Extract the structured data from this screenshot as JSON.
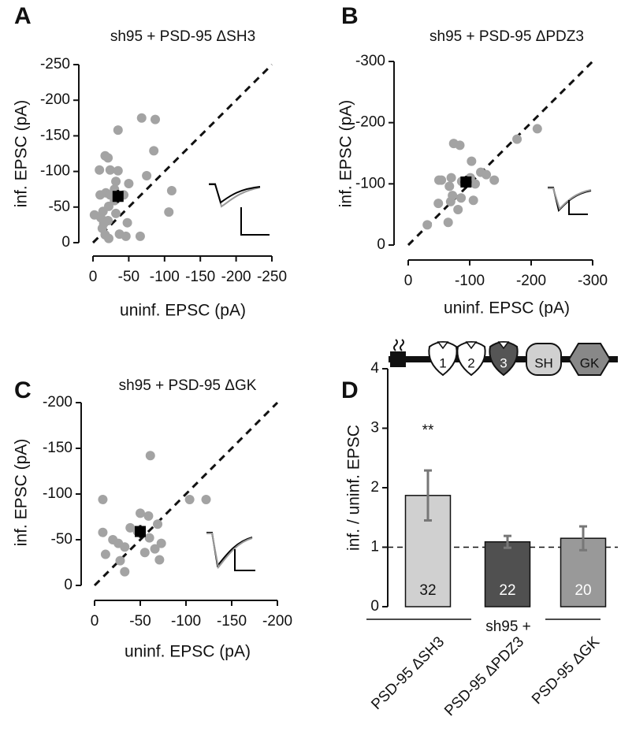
{
  "chart_data": [
    {
      "type": "scatter",
      "panel_label": "A",
      "title": "sh95 + PSD-95 ΔSH3",
      "xlabel": "uninf. EPSC (pA)",
      "ylabel": "inf. EPSC (pA)",
      "xlim": [
        0,
        -250
      ],
      "ylim": [
        0,
        -250
      ],
      "xticks": [
        0,
        -50,
        -100,
        -150,
        -200,
        -250
      ],
      "yticks": [
        0,
        -50,
        -100,
        -150,
        -200,
        -250
      ],
      "color": "#a3a3a3",
      "unity_line": true,
      "x": [
        -35,
        -68,
        -87,
        -85,
        -17,
        -21,
        -9,
        -24,
        -32,
        -35,
        -50,
        -75,
        -110,
        -106,
        -18,
        -10,
        -24,
        -43,
        -30,
        -22,
        -14,
        -2,
        -11,
        -21,
        -32,
        -15,
        -13,
        -17,
        -22,
        -37,
        -48,
        -66,
        -46,
        -30
      ],
      "values": [
        -158,
        -175,
        -173,
        -129,
        -122,
        -119,
        -102,
        -102,
        -86,
        -101,
        -83,
        -94,
        -73,
        -43,
        -70,
        -67,
        -67,
        -67,
        -59,
        -51,
        -44,
        -39,
        -35,
        -31,
        -41,
        -27,
        -20,
        -11,
        -6,
        -12,
        -28,
        -9,
        -9,
        -75
      ],
      "mean": {
        "x": -35,
        "y": -65,
        "x_error": 7,
        "y_error": 9,
        "color": "#000000"
      }
    },
    {
      "type": "scatter",
      "panel_label": "B",
      "title": "sh95 + PSD-95 ΔPDZ3",
      "xlabel": "uninf. EPSC (pA)",
      "ylabel": "inf. EPSC (pA)",
      "xlim": [
        0,
        -300
      ],
      "ylim": [
        0,
        -300
      ],
      "xticks": [
        0,
        -100,
        -200,
        -300
      ],
      "yticks": [
        0,
        -100,
        -200,
        -300
      ],
      "color": "#a3a3a3",
      "unity_line": true,
      "x": [
        -31,
        -69,
        -81,
        -65,
        -49,
        -54,
        -70,
        -87,
        -101,
        -109,
        -118,
        -127,
        -140,
        -103,
        -74,
        -84,
        -72,
        -67,
        -86,
        -106,
        -177,
        -210,
        -50
      ],
      "values": [
        -33,
        -71,
        -58,
        -37,
        -68,
        -106,
        -110,
        -104,
        -110,
        -100,
        -119,
        -115,
        -106,
        -137,
        -166,
        -163,
        -81,
        -96,
        -77,
        -73,
        -173,
        -190,
        -106
      ],
      "mean": {
        "x": -94,
        "y": -103,
        "x_error": 9,
        "y_error": 10,
        "color": "#000000"
      }
    },
    {
      "type": "scatter",
      "panel_label": "C",
      "title": "sh95 + PSD-95 ΔGK",
      "xlabel": "uninf. EPSC (pA)",
      "ylabel": "inf. EPSC (pA)",
      "xlim": [
        0,
        -200
      ],
      "ylim": [
        0,
        -200
      ],
      "xticks": [
        0,
        -50,
        -100,
        -150,
        -200
      ],
      "yticks": [
        0,
        -50,
        -100,
        -150,
        -200
      ],
      "color": "#a3a3a3",
      "unity_line": true,
      "x": [
        -9,
        -61,
        -104,
        -122,
        -9,
        -20,
        -26,
        -39,
        -50,
        -59,
        -33,
        -47,
        -60,
        -69,
        -73,
        -66,
        -28,
        -33,
        -55,
        -71,
        -12
      ],
      "values": [
        -94,
        -142,
        -94,
        -94,
        -58,
        -50,
        -46,
        -63,
        -79,
        -76,
        -42,
        -59,
        -52,
        -67,
        -46,
        -40,
        -27,
        -15,
        -36,
        -28,
        -34
      ],
      "mean": {
        "x": -50,
        "y": -59,
        "x_error": 6,
        "y_error": 7,
        "color": "#000000"
      }
    },
    {
      "type": "bar",
      "panel_label": "D",
      "ylabel": "inf. / uninf. EPSC",
      "categories": [
        "PSD-95 ΔSH3",
        "PSD-95 ΔPDZ3",
        "PSD-95 ΔGK"
      ],
      "group_label": "sh95 +",
      "values": [
        1.87,
        1.09,
        1.15
      ],
      "errors": [
        0.42,
        0.1,
        0.2
      ],
      "n_labels": [
        "32",
        "22",
        "20"
      ],
      "significance_labels": [
        "**",
        null,
        null
      ],
      "colors": [
        "#d0d0d0",
        "#505050",
        "#999999"
      ],
      "ylim": [
        0,
        4
      ],
      "yticks": [
        0,
        1,
        2,
        3,
        4
      ],
      "reference_line": 1,
      "domain_labels": [
        "1",
        "2",
        "3",
        "SH",
        "GK"
      ]
    }
  ]
}
